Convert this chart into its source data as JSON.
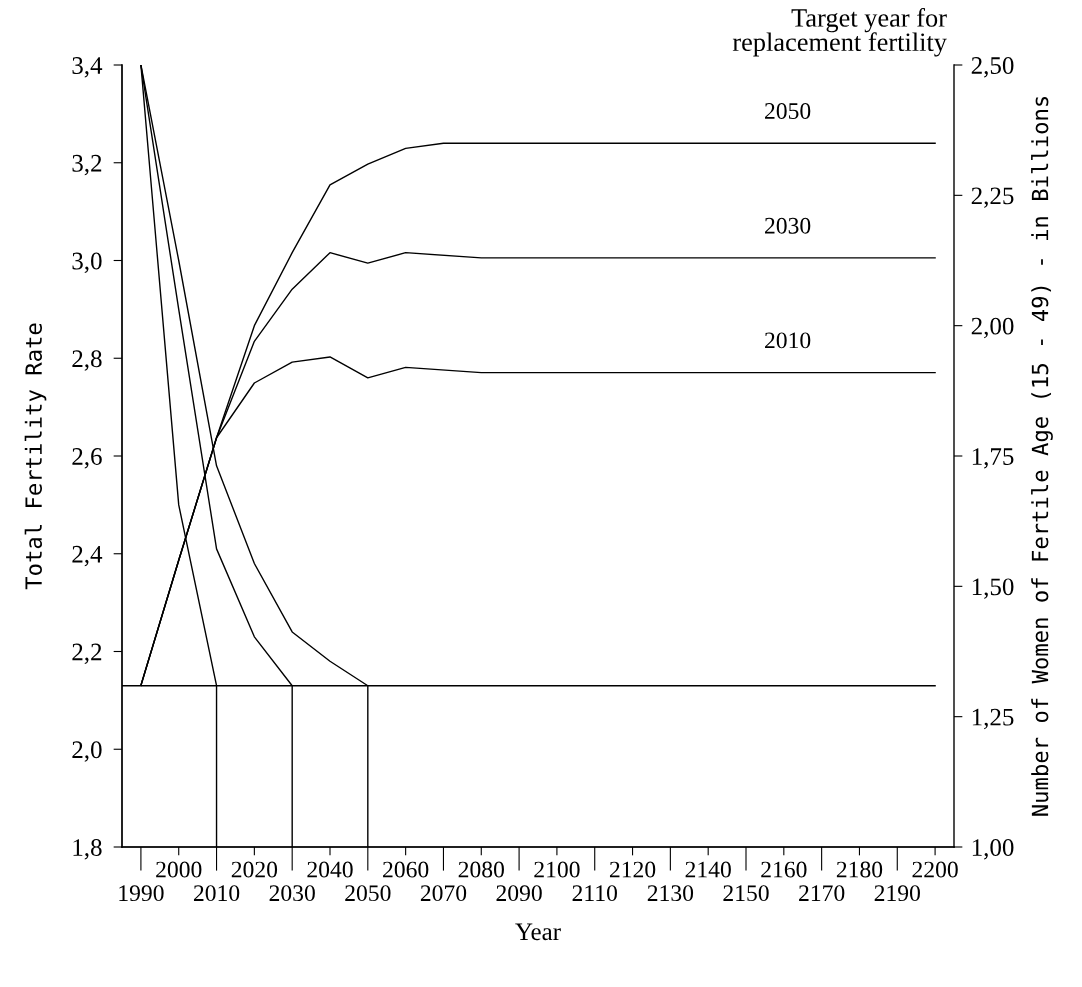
{
  "chart_data": {
    "type": "line",
    "xlabel": "Year",
    "ylabel": "Total Fertility Rate",
    "y2label": "Number of Women of Fertile Age (15 - 49) - in Billions",
    "legend_title": "Target year for\nreplacement fertility",
    "xlim": [
      1985,
      2205
    ],
    "xticks": [
      2000,
      2020,
      2040,
      2060,
      2080,
      2100,
      2120,
      2140,
      2160,
      2180,
      2200
    ],
    "x2lim": [
      1985,
      2205
    ],
    "x2ticks": [
      1990,
      2010,
      2030,
      2050,
      2070,
      2090,
      2110,
      2130,
      2150,
      2170,
      2190
    ],
    "ylim": [
      1.8,
      3.4
    ],
    "yticks": [
      {
        "value": 1.8,
        "label": "1,8"
      },
      {
        "value": 2.0,
        "label": "2,0"
      },
      {
        "value": 2.2,
        "label": "2,2"
      },
      {
        "value": 2.4,
        "label": "2,4"
      },
      {
        "value": 2.6,
        "label": "2,6"
      },
      {
        "value": 2.8,
        "label": "2,8"
      },
      {
        "value": 3.0,
        "label": "3,0"
      },
      {
        "value": 3.2,
        "label": "3,2"
      },
      {
        "value": 3.4,
        "label": "3,4"
      }
    ],
    "y2lim": [
      1.0,
      2.5
    ],
    "y2ticks": [
      {
        "value": 1.0,
        "label": "1,00"
      },
      {
        "value": 1.25,
        "label": "1,25"
      },
      {
        "value": 1.5,
        "label": "1,50"
      },
      {
        "value": 1.75,
        "label": "1,75"
      },
      {
        "value": 2.0,
        "label": "2,00"
      },
      {
        "value": 2.25,
        "label": "2,25"
      },
      {
        "value": 2.5,
        "label": "2,50"
      }
    ],
    "grid": false,
    "legend": false,
    "marker": "none",
    "line_style": "solid",
    "series": [
      {
        "axis": "y",
        "color": "#000000",
        "x": [
          1990,
          2000,
          2010,
          2010
        ],
        "values": [
          3.4,
          2.5,
          2.13,
          1.8
        ]
      },
      {
        "axis": "y",
        "color": "#000000",
        "x": [
          1990,
          2000,
          2010,
          2020,
          2030,
          2030
        ],
        "values": [
          3.4,
          2.9,
          2.41,
          2.23,
          2.13,
          1.8
        ]
      },
      {
        "axis": "y",
        "color": "#000000",
        "x": [
          1990,
          2000,
          2010,
          2020,
          2030,
          2040,
          2050,
          2050
        ],
        "values": [
          3.4,
          3.0,
          2.58,
          2.38,
          2.24,
          2.18,
          2.13,
          1.8
        ]
      },
      {
        "axis": "y",
        "color": "#000000",
        "x": [
          1985,
          2200
        ],
        "values": [
          2.13,
          2.13
        ]
      },
      {
        "axis": "y2",
        "name": "2050",
        "color": "#000000",
        "x": [
          1990,
          2000,
          2010,
          2020,
          2030,
          2040,
          2050,
          2060,
          2070,
          2200
        ],
        "values": [
          1.31,
          1.55,
          1.785,
          2.0,
          2.14,
          2.27,
          2.31,
          2.34,
          2.35,
          2.35
        ]
      },
      {
        "axis": "y2",
        "name": "2030",
        "color": "#000000",
        "x": [
          1990,
          2000,
          2010,
          2020,
          2030,
          2040,
          2050,
          2060,
          2080,
          2200
        ],
        "values": [
          1.31,
          1.55,
          1.785,
          1.97,
          2.07,
          2.14,
          2.12,
          2.14,
          2.13,
          2.13
        ]
      },
      {
        "axis": "y2",
        "name": "2010",
        "color": "#000000",
        "x": [
          1990,
          2000,
          2010,
          2020,
          2030,
          2040,
          2050,
          2060,
          2080,
          2100,
          2200
        ],
        "values": [
          1.31,
          1.55,
          1.785,
          1.89,
          1.93,
          1.94,
          1.9,
          1.92,
          1.91,
          1.91,
          1.91
        ]
      }
    ]
  }
}
